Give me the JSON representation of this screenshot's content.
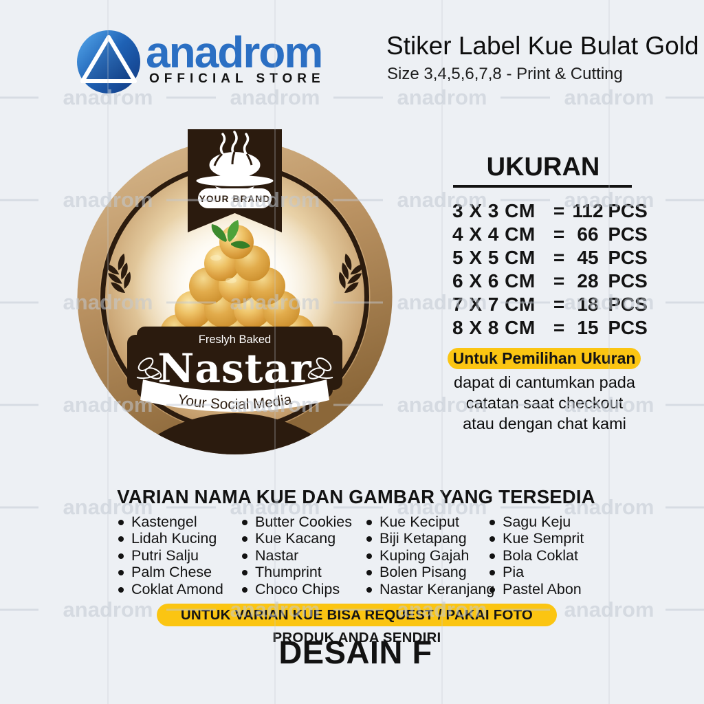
{
  "header": {
    "brand_name": "anadrom",
    "brand_subtitle": "OFFICIAL STORE",
    "product_title": "Stiker Label Kue Bulat Gold",
    "product_subtitle": "Size 3,4,5,6,7,8 - Print & Cutting"
  },
  "sticker_label": {
    "brand_placeholder": "YOUR BRAND",
    "tagline": "Freslyh Baked",
    "product_name": "Nastar",
    "social_placeholder": "Your Social Media"
  },
  "size_table": {
    "heading": "UKURAN",
    "rows": [
      {
        "size": "3 X 3 CM",
        "equals": "=",
        "qty": "112",
        "unit": "PCS"
      },
      {
        "size": "4 X 4 CM",
        "equals": "=",
        "qty": "66",
        "unit": "PCS"
      },
      {
        "size": "5 X 5 CM",
        "equals": "=",
        "qty": "45",
        "unit": "PCS"
      },
      {
        "size": "6 X 6 CM",
        "equals": "=",
        "qty": "28",
        "unit": "PCS"
      },
      {
        "size": "7 X 7 CM",
        "equals": "=",
        "qty": "18",
        "unit": "PCS"
      },
      {
        "size": "8 X 8 CM",
        "equals": "=",
        "qty": "15",
        "unit": "PCS"
      }
    ],
    "note_highlight": "Untuk Pemilihan Ukuran",
    "note_lines": [
      "dapat di cantumkan pada",
      "catatan saat checkout",
      "atau dengan chat kami"
    ]
  },
  "variants": {
    "heading": "VARIAN NAMA KUE DAN GAMBAR YANG TERSEDIA",
    "columns": [
      [
        "Kastengel",
        "Lidah Kucing",
        "Putri Salju",
        "Palm Chese",
        "Coklat Amond"
      ],
      [
        "Butter Cookies",
        "Kue Kacang",
        "Nastar",
        "Thumprint",
        "Choco Chips"
      ],
      [
        "Kue Keciput",
        "Biji Ketapang",
        "Kuping Gajah",
        "Bolen Pisang",
        "Nastar Keranjang"
      ],
      [
        "Sagu Keju",
        "Kue Semprit",
        "Bola Coklat",
        "Pia",
        "Pastel Abon"
      ]
    ],
    "request_banner": "UNTUK VARIAN KUE BISA REQUEST / PAKAI FOTO PRODUK ANDA SENDIRI"
  },
  "footer": {
    "design_label": "DESAIN F"
  },
  "watermark": {
    "text": "anadrom"
  },
  "colors": {
    "accent_yellow": "#FBC512",
    "dark_brown": "#2B1B0E",
    "brand_blue": "#2B6FC3",
    "gold": "#C49A67",
    "background": "#EDF0F4"
  }
}
